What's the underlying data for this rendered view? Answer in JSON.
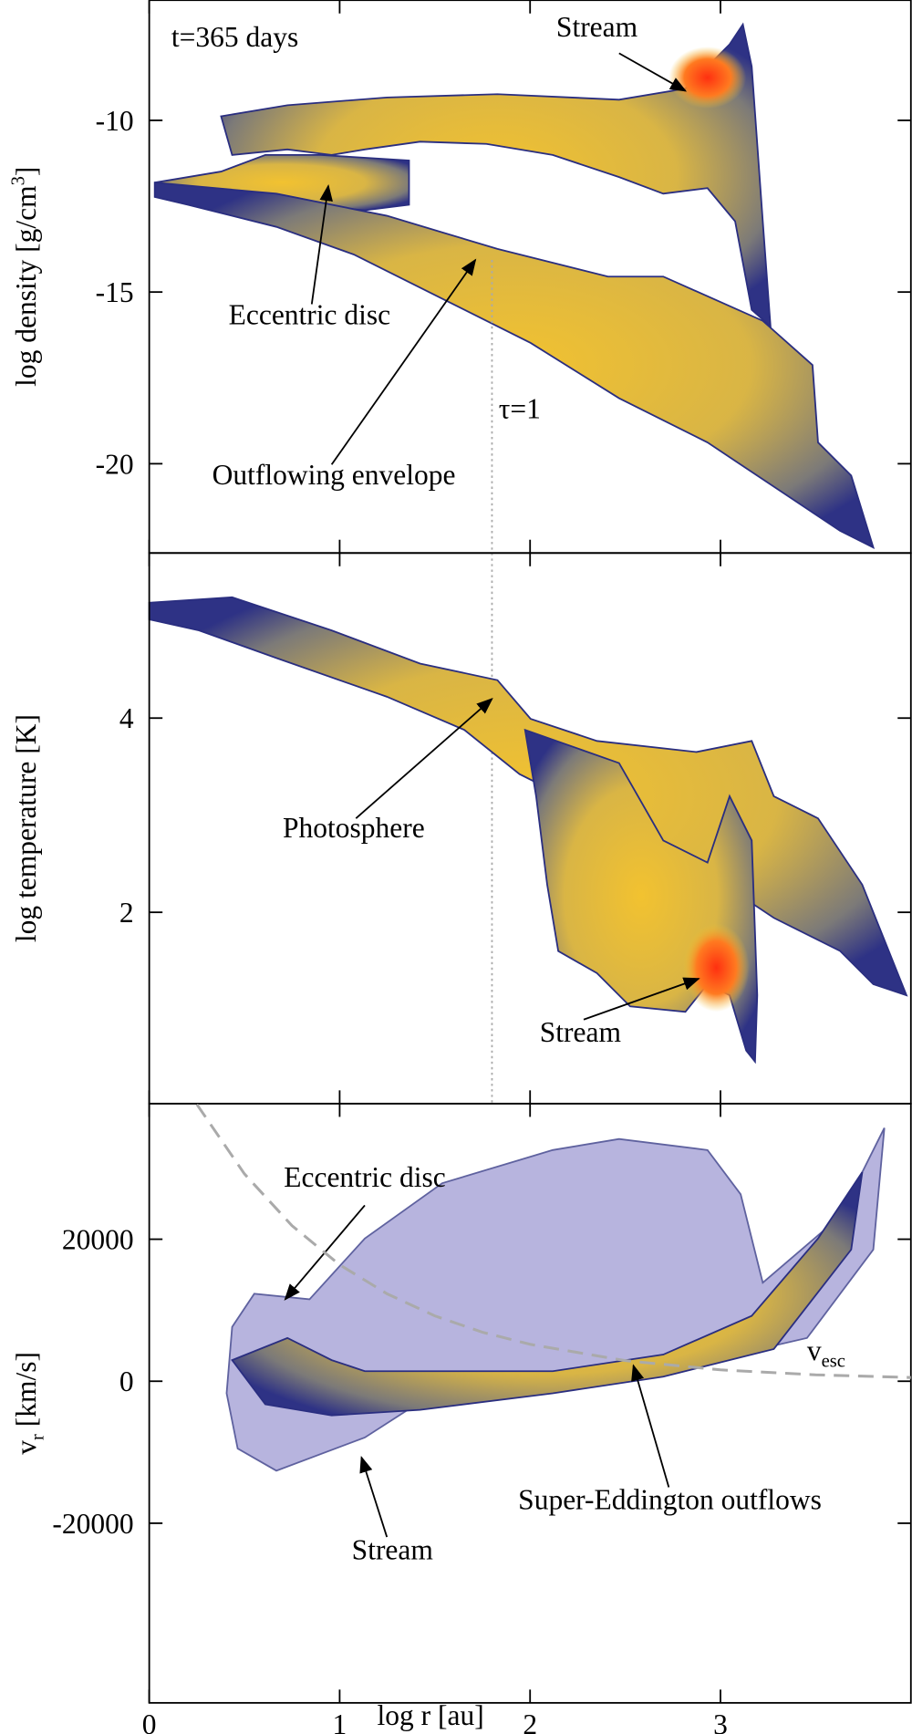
{
  "chart_data": [
    {
      "type": "scatter",
      "ylabel_parts": [
        "log density [g/cm",
        "3",
        "]"
      ],
      "ylim": [
        -22.6,
        -6.5
      ],
      "yticks": [
        -10,
        -15,
        -20
      ],
      "time_label": "t=365 days",
      "tau_x": 1.8,
      "tau_label": "τ=1",
      "annotations": [
        "Stream",
        "Eccentric disc",
        "Outflowing envelope"
      ]
    },
    {
      "type": "scatter",
      "ylabel_parts": [
        "log temperature [K]"
      ],
      "ylim": [
        0.03,
        5.7
      ],
      "yticks": [
        4,
        2
      ],
      "annotations": [
        "Photosphere",
        "Stream"
      ]
    },
    {
      "type": "scatter",
      "ylabel_parts": [
        "v",
        "r",
        " [km/s]"
      ],
      "ylim": [
        -45300,
        39100
      ],
      "yticks": [
        20000,
        0,
        -20000
      ],
      "xlabel": "log r [au]",
      "xlim": [
        0,
        4
      ],
      "xticks": [
        0,
        1,
        2,
        3
      ],
      "vesc": {
        "label_parts": [
          "v",
          "esc"
        ],
        "color": "#aaaaaa",
        "x": [
          0.25,
          0.5,
          0.75,
          1,
          1.25,
          1.5,
          1.75,
          2,
          2.5,
          3,
          3.5,
          4
        ],
        "values": [
          39000,
          29200,
          21900,
          16400,
          12300,
          9200,
          6900,
          5200,
          2900,
          1600,
          900,
          520
        ]
      },
      "annotations": [
        "Eccentric disc",
        "Super-Eddington outflows",
        "Stream"
      ]
    }
  ]
}
